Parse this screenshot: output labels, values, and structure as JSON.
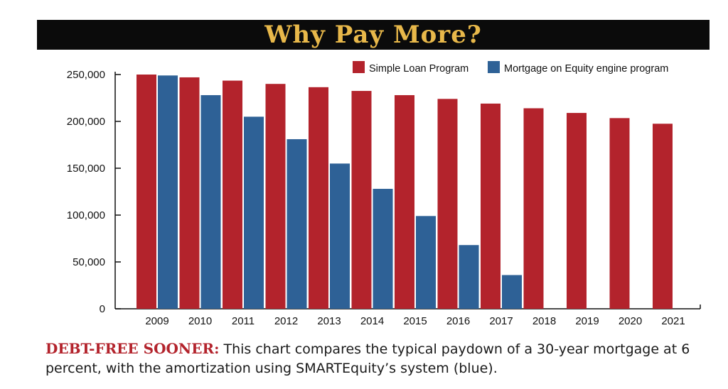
{
  "title": "Why Pay More?",
  "chart_data": {
    "type": "bar",
    "categories": [
      "2009",
      "2010",
      "2011",
      "2012",
      "2013",
      "2014",
      "2015",
      "2016",
      "2017",
      "2018",
      "2019",
      "2020",
      "2021"
    ],
    "series": [
      {
        "name": "Simple Loan Program",
        "color": "#b3232c",
        "values": [
          250000,
          247000,
          243500,
          240000,
          236500,
          232500,
          228000,
          224000,
          219000,
          214000,
          209000,
          203500,
          197500
        ]
      },
      {
        "name": "Mortgage on Equity engine program",
        "color": "#2e6196",
        "values": [
          249000,
          228000,
          205000,
          181000,
          155000,
          128000,
          99000,
          68000,
          36000,
          null,
          null,
          null,
          null
        ]
      }
    ],
    "yticks": [
      "0",
      "50,000",
      "100,000",
      "150,000",
      "200,000",
      "250,000"
    ],
    "ylim": [
      0,
      250000
    ],
    "legend_position": "top-right",
    "grid": false
  },
  "caption": {
    "lead": "DEBT-FREE SOONER:",
    "text": " This chart compares the typical paydown of a 30-year mortgage at 6 percent, with the amortization using SMARTEquity’s system (blue)."
  }
}
